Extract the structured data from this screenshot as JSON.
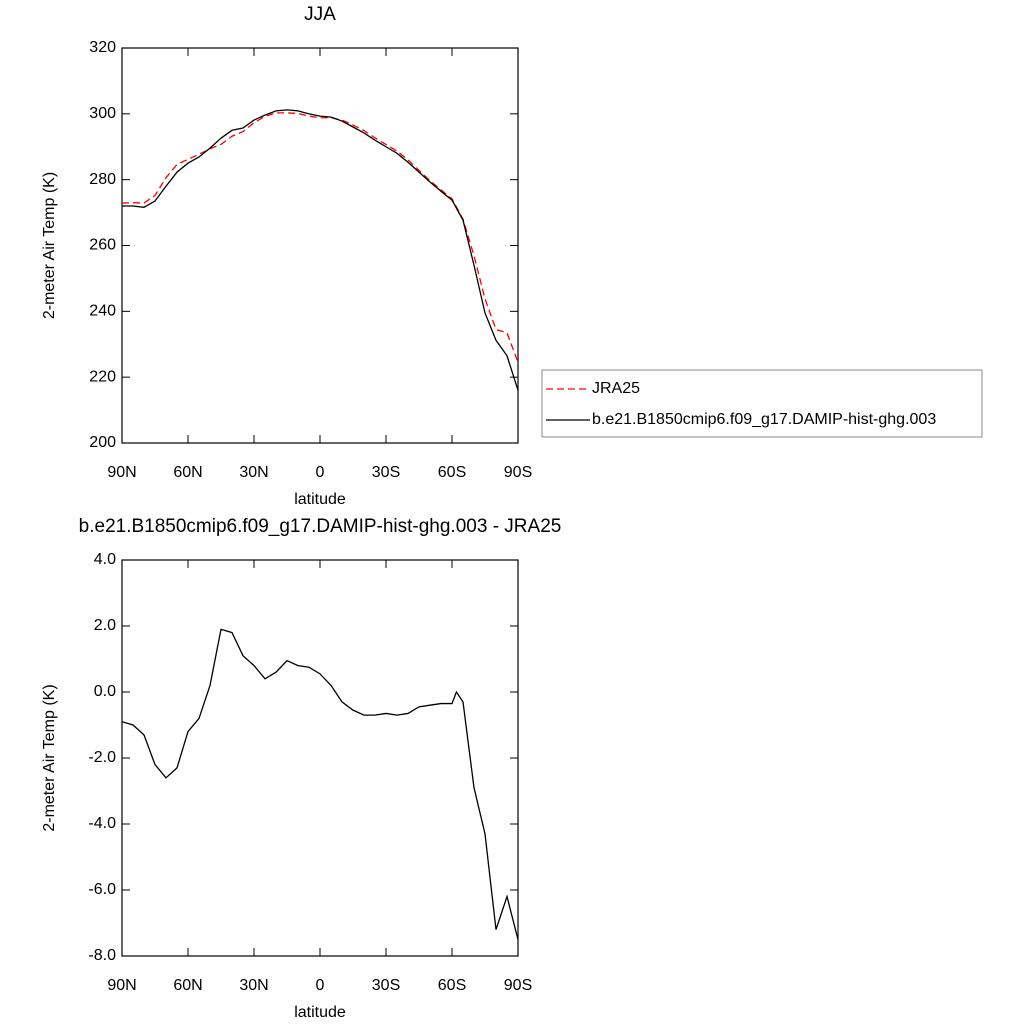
{
  "chart_data": [
    {
      "type": "line",
      "title": "JJA",
      "xlabel": "latitude",
      "ylabel": "2-meter Air Temp (K)",
      "x": [
        90,
        85,
        80,
        75,
        70,
        65,
        60,
        55,
        50,
        45,
        40,
        35,
        30,
        25,
        20,
        15,
        10,
        5,
        0,
        -5,
        -10,
        -15,
        -20,
        -25,
        -30,
        -35,
        -40,
        -45,
        -50,
        -55,
        -60,
        -65,
        -70,
        -75,
        -80,
        -85,
        -90
      ],
      "series": [
        {
          "name": "JRA25",
          "color": "#ff0000",
          "style": "dashed",
          "values": [
            272.9,
            273,
            272.9,
            275.2,
            280.6,
            284.6,
            286.2,
            287.7,
            289.4,
            290.7,
            293.2,
            294.6,
            297.3,
            299.2,
            300.3,
            300.3,
            300.1,
            299.3,
            298.8,
            298.8,
            298.1,
            296.6,
            294.9,
            292.7,
            290.7,
            288.7,
            286,
            282.8,
            279.7,
            276.9,
            274.2,
            268,
            256.9,
            243.8,
            234.5,
            233.5,
            224.5
          ]
        },
        {
          "name": "b.e21.B1850cmip6.f09_g17.DAMIP-hist-ghg.003",
          "color": "#000000",
          "style": "solid",
          "values": [
            272,
            272,
            271.6,
            273.5,
            278,
            282.3,
            285,
            286.9,
            289.6,
            292.6,
            295,
            295.7,
            298.1,
            299.6,
            300.9,
            301.2,
            300.9,
            300,
            299.3,
            299,
            297.8,
            296,
            294.2,
            292,
            290,
            288,
            285.3,
            282.3,
            279.3,
            276.5,
            273.8,
            267.7,
            254,
            239.5,
            231.2,
            226.5,
            216
          ]
        }
      ],
      "xlim": [
        90,
        -90
      ],
      "xticks": [
        {
          "value": 90,
          "label": "90N"
        },
        {
          "value": 60,
          "label": "60N"
        },
        {
          "value": 30,
          "label": "30N"
        },
        0,
        {
          "value": -30,
          "label": "30S"
        },
        {
          "value": -60,
          "label": "60S"
        },
        {
          "value": -90,
          "label": "90S"
        }
      ],
      "ylim": [
        200,
        320
      ],
      "yticks": [
        200,
        220,
        240,
        260,
        280,
        300,
        320
      ],
      "legend": "right"
    },
    {
      "type": "line",
      "title": "b.e21.B1850cmip6.f09_g17.DAMIP-hist-ghg.003 - JRA25",
      "xlabel": "latitude",
      "ylabel": "2-meter Air Temp (K)",
      "x": [
        90,
        85,
        80,
        75,
        70,
        65,
        60,
        55,
        50,
        45,
        40,
        35,
        30,
        25,
        20,
        15,
        10,
        5,
        0,
        -5,
        -10,
        -15,
        -20,
        -25,
        -30,
        -35,
        -40,
        -45,
        -50,
        -55,
        -60,
        -62,
        -65,
        -70,
        -75,
        -80,
        -85,
        -90
      ],
      "series": [
        {
          "color": "#000000",
          "style": "solid",
          "values": [
            -0.9,
            -1.0,
            -1.3,
            -2.2,
            -2.6,
            -2.3,
            -1.2,
            -0.8,
            0.2,
            1.9,
            1.8,
            1.1,
            0.8,
            0.4,
            0.6,
            0.95,
            0.8,
            0.75,
            0.55,
            0.2,
            -0.3,
            -0.55,
            -0.7,
            -0.7,
            -0.65,
            -0.7,
            -0.65,
            -0.45,
            -0.4,
            -0.35,
            -0.35,
            0.0,
            -0.3,
            -2.9,
            -4.3,
            -7.2,
            -6.2,
            -7.5
          ]
        }
      ],
      "xlim": [
        90,
        -90
      ],
      "xticks": [
        {
          "value": 90,
          "label": "90N"
        },
        {
          "value": 60,
          "label": "60N"
        },
        {
          "value": 30,
          "label": "30N"
        },
        0,
        {
          "value": -30,
          "label": "30S"
        },
        {
          "value": -60,
          "label": "60S"
        },
        {
          "value": -90,
          "label": "90S"
        }
      ],
      "ylim": [
        -8,
        4
      ],
      "yticks": [
        {
          "value": -8,
          "label": "-8.0"
        },
        {
          "value": -6,
          "label": "-6.0"
        },
        {
          "value": -4,
          "label": "-4.0"
        },
        {
          "value": -2,
          "label": "-2.0"
        },
        {
          "value": 0,
          "label": "0.0"
        },
        {
          "value": 2,
          "label": "2.0"
        },
        {
          "value": 4,
          "label": "4.0"
        }
      ]
    }
  ]
}
